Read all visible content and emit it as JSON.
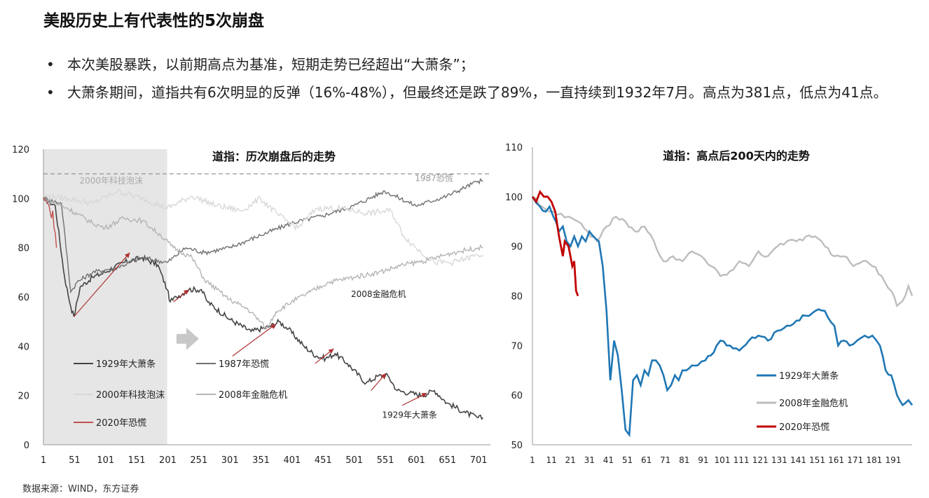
{
  "page": {
    "title": "美股历史上有代表性的5次崩盘",
    "bullets": [
      "本次美股暴跌，以前期高点为基准，短期走势已经超出“大萧条”；",
      "大萧条期间，道指共有6次明显的反弹（16%-48%），但最终还是跌了89%，一直持续到1932年7月。高点为381点，低点为41点。"
    ],
    "source": "数据来源：WIND，东方证券"
  },
  "chart_data": [
    {
      "type": "line",
      "title": "道指：历次崩盘后的走势",
      "xlabel": "",
      "ylabel": "",
      "xlim": [
        1,
        720
      ],
      "ylim": [
        0,
        120
      ],
      "x_ticks": [
        "1",
        "51",
        "101",
        "151",
        "201",
        "251",
        "301",
        "351",
        "401",
        "451",
        "501",
        "551",
        "601",
        "651",
        "701"
      ],
      "y_ticks": [
        "0",
        "20",
        "40",
        "60",
        "80",
        "100",
        "120"
      ],
      "reference_line": 110,
      "shaded_region": [
        1,
        200
      ],
      "annotations": [
        "2000年科技泡沫",
        "1987恐慌",
        "2008金融危机",
        "1929年大萧条"
      ],
      "series": [
        {
          "name": "1929年大萧条",
          "color": "#444444",
          "points": [
            [
              1,
              100
            ],
            [
              20,
              97
            ],
            [
              35,
              68
            ],
            [
              45,
              56
            ],
            [
              50,
              52
            ],
            [
              60,
              64
            ],
            [
              80,
              68
            ],
            [
              100,
              70
            ],
            [
              130,
              74
            ],
            [
              160,
              76
            ],
            [
              185,
              73
            ],
            [
              200,
              63
            ],
            [
              205,
              58
            ],
            [
              215,
              60
            ],
            [
              235,
              63
            ],
            [
              255,
              63
            ],
            [
              265,
              58
            ],
            [
              300,
              51
            ],
            [
              335,
              46
            ],
            [
              365,
              48
            ],
            [
              380,
              50
            ],
            [
              395,
              47
            ],
            [
              420,
              40
            ],
            [
              440,
              36
            ],
            [
              455,
              35
            ],
            [
              470,
              37
            ],
            [
              490,
              33
            ],
            [
              520,
              25
            ],
            [
              540,
              28
            ],
            [
              555,
              28
            ],
            [
              570,
              22
            ],
            [
              590,
              21
            ],
            [
              610,
              20
            ],
            [
              630,
              22
            ],
            [
              650,
              17
            ],
            [
              680,
              13
            ],
            [
              700,
              11
            ],
            [
              708,
              11
            ]
          ]
        },
        {
          "name": "1987年恐慌",
          "color": "#707070",
          "points": [
            [
              1,
              100
            ],
            [
              30,
              98
            ],
            [
              45,
              62
            ],
            [
              55,
              66
            ],
            [
              80,
              70
            ],
            [
              120,
              72
            ],
            [
              160,
              76
            ],
            [
              200,
              74
            ],
            [
              230,
              80
            ],
            [
              260,
              78
            ],
            [
              300,
              80
            ],
            [
              350,
              85
            ],
            [
              400,
              90
            ],
            [
              450,
              93
            ],
            [
              500,
              97
            ],
            [
              550,
              103
            ],
            [
              600,
              97
            ],
            [
              650,
              101
            ],
            [
              700,
              107
            ],
            [
              708,
              107
            ]
          ]
        },
        {
          "name": "2000年科技泡沫",
          "color": "#d8d8d8",
          "points": [
            [
              1,
              101
            ],
            [
              40,
              100
            ],
            [
              80,
              98
            ],
            [
              120,
              103
            ],
            [
              160,
              100
            ],
            [
              200,
              96
            ],
            [
              240,
              101
            ],
            [
              280,
              97
            ],
            [
              320,
              95
            ],
            [
              350,
              100
            ],
            [
              380,
              93
            ],
            [
              410,
              88
            ],
            [
              440,
              96
            ],
            [
              480,
              96
            ],
            [
              520,
              94
            ],
            [
              560,
              95
            ],
            [
              580,
              85
            ],
            [
              600,
              80
            ],
            [
              630,
              74
            ],
            [
              660,
              74
            ],
            [
              700,
              77
            ],
            [
              708,
              77
            ]
          ]
        },
        {
          "name": "2008年金融危机",
          "color": "#b4b4b4",
          "points": [
            [
              1,
              100
            ],
            [
              40,
              96
            ],
            [
              80,
              90
            ],
            [
              100,
              88
            ],
            [
              130,
              92
            ],
            [
              160,
              91
            ],
            [
              190,
              85
            ],
            [
              210,
              80
            ],
            [
              240,
              76
            ],
            [
              260,
              67
            ],
            [
              280,
              63
            ],
            [
              300,
              59
            ],
            [
              330,
              55
            ],
            [
              350,
              50
            ],
            [
              360,
              47
            ],
            [
              375,
              54
            ],
            [
              400,
              58
            ],
            [
              430,
              62
            ],
            [
              460,
              66
            ],
            [
              500,
              68
            ],
            [
              540,
              70
            ],
            [
              580,
              73
            ],
            [
              620,
              75
            ],
            [
              660,
              78
            ],
            [
              700,
              80
            ],
            [
              708,
              80
            ]
          ]
        },
        {
          "name": "2020年恐慌",
          "color": "#c0504d",
          "points": [
            [
              1,
              100
            ],
            [
              5,
              99
            ],
            [
              10,
              97
            ],
            [
              14,
              92
            ],
            [
              16,
              95
            ],
            [
              18,
              88
            ],
            [
              20,
              86
            ],
            [
              22,
              80
            ]
          ]
        }
      ],
      "arrows": [
        {
          "from": [
            50,
            52
          ],
          "to": [
            140,
            78
          ]
        },
        {
          "from": [
            210,
            58
          ],
          "to": [
            235,
            63
          ]
        },
        {
          "from": [
            305,
            36
          ],
          "to": [
            375,
            49
          ]
        },
        {
          "from": [
            438,
            33
          ],
          "to": [
            468,
            39
          ]
        },
        {
          "from": [
            528,
            22
          ],
          "to": [
            552,
            29
          ]
        },
        {
          "from": [
            578,
            16
          ],
          "to": [
            618,
            21
          ]
        }
      ]
    },
    {
      "type": "line",
      "title": "道指：高点后200天内的走势",
      "xlabel": "",
      "ylabel": "",
      "xlim": [
        1,
        201
      ],
      "ylim": [
        50,
        110
      ],
      "x_ticks": [
        "1",
        "11",
        "21",
        "31",
        "41",
        "51",
        "61",
        "71",
        "81",
        "91",
        "101",
        "111",
        "121",
        "131",
        "141",
        "151",
        "161",
        "171",
        "181",
        "191"
      ],
      "y_ticks": [
        "50",
        "60",
        "70",
        "80",
        "90",
        "100",
        "110"
      ],
      "series": [
        {
          "name": "1929年大萧条",
          "color": "#1f77b4",
          "points": [
            [
              1,
              100
            ],
            [
              5,
              98
            ],
            [
              8,
              97
            ],
            [
              10,
              98
            ],
            [
              12,
              96
            ],
            [
              15,
              93
            ],
            [
              17,
              94
            ],
            [
              19,
              91
            ],
            [
              21,
              90
            ],
            [
              23,
              92
            ],
            [
              25,
              90
            ],
            [
              27,
              92
            ],
            [
              29,
              91
            ],
            [
              31,
              93
            ],
            [
              33,
              92
            ],
            [
              36,
              91
            ],
            [
              38,
              86
            ],
            [
              40,
              77
            ],
            [
              42,
              63
            ],
            [
              44,
              71
            ],
            [
              46,
              68
            ],
            [
              48,
              61
            ],
            [
              50,
              53
            ],
            [
              52,
              52
            ],
            [
              54,
              63
            ],
            [
              56,
              64
            ],
            [
              58,
              62
            ],
            [
              60,
              65
            ],
            [
              62,
              64
            ],
            [
              64,
              67
            ],
            [
              66,
              67
            ],
            [
              68,
              66
            ],
            [
              70,
              64
            ],
            [
              72,
              61
            ],
            [
              74,
              62
            ],
            [
              76,
              64
            ],
            [
              78,
              63
            ],
            [
              80,
              65
            ],
            [
              82,
              65
            ],
            [
              85,
              66
            ],
            [
              88,
              66
            ],
            [
              92,
              67
            ],
            [
              95,
              68
            ],
            [
              98,
              70
            ],
            [
              100,
              71
            ],
            [
              105,
              70
            ],
            [
              110,
              69
            ],
            [
              115,
              71
            ],
            [
              120,
              72
            ],
            [
              125,
              71
            ],
            [
              130,
              73
            ],
            [
              135,
              74
            ],
            [
              140,
              75
            ],
            [
              145,
              76
            ],
            [
              150,
              77
            ],
            [
              155,
              77
            ],
            [
              160,
              74
            ],
            [
              162,
              70
            ],
            [
              165,
              71
            ],
            [
              168,
              70
            ],
            [
              172,
              71
            ],
            [
              176,
              72
            ],
            [
              180,
              72
            ],
            [
              184,
              70
            ],
            [
              187,
              65
            ],
            [
              190,
              64
            ],
            [
              193,
              60
            ],
            [
              196,
              58
            ],
            [
              199,
              59
            ],
            [
              201,
              58
            ]
          ]
        },
        {
          "name": "2008年金融危机",
          "color": "#bdbdbd",
          "points": [
            [
              1,
              100
            ],
            [
              10,
              97
            ],
            [
              20,
              96
            ],
            [
              25,
              95
            ],
            [
              30,
              93
            ],
            [
              35,
              91
            ],
            [
              40,
              94
            ],
            [
              45,
              96
            ],
            [
              50,
              95
            ],
            [
              55,
              93
            ],
            [
              60,
              94
            ],
            [
              65,
              91
            ],
            [
              70,
              87
            ],
            [
              75,
              88
            ],
            [
              80,
              87
            ],
            [
              85,
              89
            ],
            [
              90,
              88
            ],
            [
              95,
              86
            ],
            [
              100,
              84
            ],
            [
              105,
              85
            ],
            [
              110,
              87
            ],
            [
              115,
              86
            ],
            [
              120,
              89
            ],
            [
              125,
              88
            ],
            [
              130,
              90
            ],
            [
              135,
              91
            ],
            [
              140,
              91
            ],
            [
              145,
              92
            ],
            [
              150,
              92
            ],
            [
              155,
              90
            ],
            [
              160,
              88
            ],
            [
              165,
              88
            ],
            [
              170,
              86
            ],
            [
              175,
              87
            ],
            [
              180,
              86
            ],
            [
              185,
              84
            ],
            [
              190,
              81
            ],
            [
              193,
              78
            ],
            [
              196,
              79
            ],
            [
              199,
              82
            ],
            [
              201,
              80
            ]
          ]
        },
        {
          "name": "2020年恐慌",
          "color": "#c00000",
          "points": [
            [
              1,
              100
            ],
            [
              3,
              99
            ],
            [
              5,
              101
            ],
            [
              7,
              100
            ],
            [
              9,
              100
            ],
            [
              11,
              99
            ],
            [
              13,
              97
            ],
            [
              15,
              92
            ],
            [
              17,
              88
            ],
            [
              18,
              91
            ],
            [
              20,
              90
            ],
            [
              22,
              86
            ],
            [
              23,
              87
            ],
            [
              24,
              81
            ],
            [
              25,
              80
            ]
          ]
        }
      ]
    }
  ]
}
